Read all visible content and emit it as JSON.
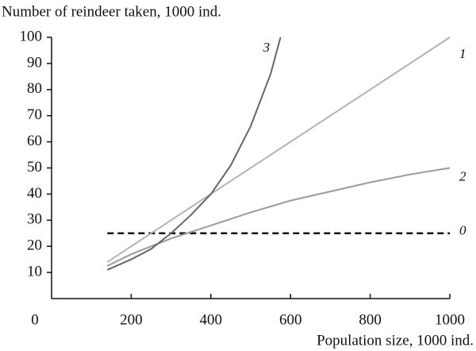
{
  "chart_data": {
    "type": "line",
    "y_label": "Number of reindeer taken, 1000 ind.",
    "x_label": "Population size, 1000 ind.",
    "xlim": [
      0,
      1000
    ],
    "xticks": [
      0,
      200,
      400,
      600,
      800,
      1000
    ],
    "ylim": [
      0,
      100
    ],
    "yticks": [
      10,
      20,
      30,
      40,
      50,
      60,
      70,
      80,
      90,
      100
    ],
    "series": [
      {
        "name": "0",
        "color": "#111111",
        "dashed": true,
        "x": [
          140,
          1000
        ],
        "values": [
          25,
          25
        ]
      },
      {
        "name": "1",
        "color": "#b3b3b3",
        "x": [
          140,
          1000
        ],
        "values": [
          14,
          100
        ]
      },
      {
        "name": "2",
        "color": "#9a9a9a",
        "x": [
          140,
          200,
          300,
          400,
          500,
          600,
          700,
          800,
          900,
          1000
        ],
        "values": [
          12.5,
          17,
          23,
          28,
          33,
          37.5,
          41,
          44.5,
          47.5,
          50
        ]
      },
      {
        "name": "3",
        "color": "#666666",
        "x": [
          140,
          200,
          250,
          300,
          350,
          400,
          450,
          500,
          550,
          575
        ],
        "values": [
          11,
          15,
          19,
          25,
          32,
          40,
          51,
          66,
          86,
          100
        ]
      }
    ]
  }
}
